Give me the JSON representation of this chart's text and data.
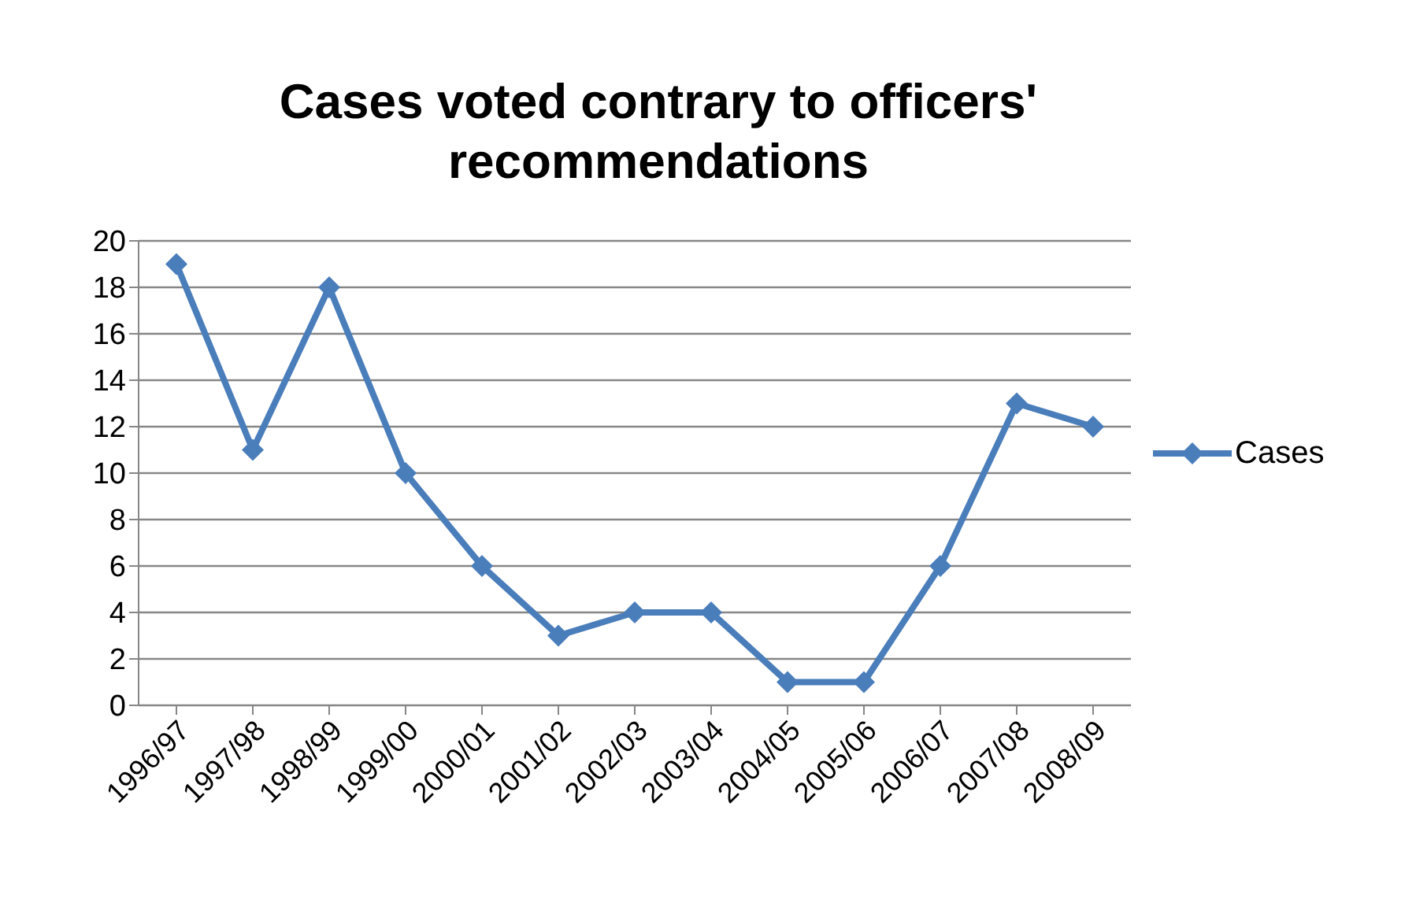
{
  "chart_data": {
    "type": "line",
    "title": "Cases voted contrary to officers' recommendations",
    "categories": [
      "1996/97",
      "1997/98",
      "1998/99",
      "1999/00",
      "2000/01",
      "2001/02",
      "2002/03",
      "2003/04",
      "2004/05",
      "2005/06",
      "2006/07",
      "2007/08",
      "2008/09"
    ],
    "series": [
      {
        "name": "Cases",
        "color": "#4a7ebb",
        "values": [
          19,
          11,
          18,
          10,
          6,
          3,
          4,
          4,
          1,
          1,
          6,
          13,
          12
        ]
      }
    ],
    "ylim": [
      0,
      20
    ],
    "yticks": [
      0,
      2,
      4,
      6,
      8,
      10,
      12,
      14,
      16,
      18,
      20
    ],
    "grid": "y",
    "legend": "right",
    "marker": "diamond",
    "line_style": "solid"
  }
}
